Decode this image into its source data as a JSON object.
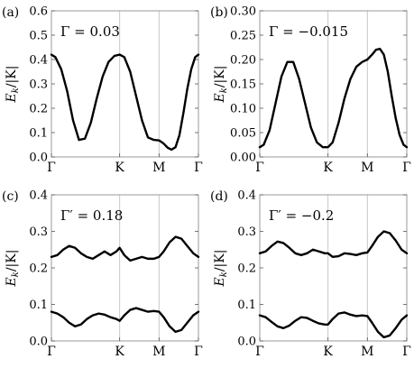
{
  "chart_data": [
    {
      "type": "line",
      "panel_label": "(a)",
      "annotation": "Γ = 0.03",
      "ylabel": "E_k/|K|",
      "ylabel_main": "E",
      "ylabel_sub": "k",
      "ylabel_rest": "/|K|",
      "ylim": [
        0,
        0.6
      ],
      "yticks": [
        "0.0",
        "0.1",
        "0.2",
        "0.3",
        "0.4",
        "0.5",
        "0.6"
      ],
      "xlim": [
        0,
        3.732
      ],
      "xticks": [
        {
          "label": "Γ",
          "x": 0
        },
        {
          "label": "K",
          "x": 1.732
        },
        {
          "label": "M",
          "x": 2.732
        },
        {
          "label": "Γ",
          "x": 3.732
        }
      ],
      "grid": false,
      "series": [
        {
          "x": [
            0,
            0.1,
            0.25,
            0.4,
            0.55,
            0.7,
            0.85,
            1.0,
            1.15,
            1.3,
            1.45,
            1.6,
            1.732,
            1.85,
            2.0,
            2.15,
            2.3,
            2.45,
            2.6,
            2.732,
            2.85,
            2.95,
            3.05,
            3.15,
            3.25,
            3.35,
            3.45,
            3.55,
            3.65,
            3.732
          ],
          "y": [
            0.42,
            0.41,
            0.36,
            0.27,
            0.15,
            0.07,
            0.075,
            0.14,
            0.24,
            0.33,
            0.39,
            0.415,
            0.42,
            0.41,
            0.35,
            0.25,
            0.15,
            0.08,
            0.07,
            0.068,
            0.055,
            0.038,
            0.03,
            0.04,
            0.09,
            0.18,
            0.28,
            0.36,
            0.41,
            0.42
          ]
        }
      ]
    },
    {
      "type": "line",
      "panel_label": "(b)",
      "annotation": "Γ = −0.015",
      "ylabel": "E_k/|K|",
      "ylabel_main": "E",
      "ylabel_sub": "k",
      "ylabel_rest": "/|K|",
      "ylim": [
        0,
        0.3
      ],
      "yticks": [
        "0.00",
        "0.05",
        "0.10",
        "0.15",
        "0.20",
        "0.25",
        "0.30"
      ],
      "xlim": [
        0,
        3.732
      ],
      "xticks": [
        {
          "label": "Γ",
          "x": 0
        },
        {
          "label": "K",
          "x": 1.732
        },
        {
          "label": "M",
          "x": 2.732
        },
        {
          "label": "Γ",
          "x": 3.732
        }
      ],
      "grid": false,
      "series": [
        {
          "x": [
            0,
            0.1,
            0.25,
            0.4,
            0.55,
            0.7,
            0.85,
            1.0,
            1.15,
            1.3,
            1.45,
            1.6,
            1.732,
            1.85,
            2.0,
            2.15,
            2.3,
            2.45,
            2.6,
            2.732,
            2.85,
            2.95,
            3.05,
            3.15,
            3.25,
            3.35,
            3.45,
            3.55,
            3.65,
            3.732
          ],
          "y": [
            0.02,
            0.025,
            0.055,
            0.11,
            0.165,
            0.195,
            0.195,
            0.16,
            0.11,
            0.06,
            0.03,
            0.02,
            0.02,
            0.03,
            0.07,
            0.12,
            0.16,
            0.185,
            0.195,
            0.2,
            0.21,
            0.22,
            0.222,
            0.21,
            0.175,
            0.125,
            0.08,
            0.045,
            0.025,
            0.02
          ]
        }
      ]
    },
    {
      "type": "line",
      "panel_label": "(c)",
      "annotation": "Γ′ = 0.18",
      "ylabel": "E_k/|K|",
      "ylabel_main": "E",
      "ylabel_sub": "k",
      "ylabel_rest": "/|K|",
      "ylim": [
        0,
        0.4
      ],
      "yticks": [
        "0.0",
        "0.1",
        "0.2",
        "0.3",
        "0.4"
      ],
      "xlim": [
        0,
        3.732
      ],
      "xticks": [
        {
          "label": "Γ",
          "x": 0
        },
        {
          "label": "K",
          "x": 1.732
        },
        {
          "label": "M",
          "x": 2.732
        },
        {
          "label": "Γ",
          "x": 3.732
        }
      ],
      "grid": false,
      "series": [
        {
          "x": [
            0,
            0.15,
            0.3,
            0.45,
            0.6,
            0.75,
            0.9,
            1.05,
            1.2,
            1.35,
            1.5,
            1.65,
            1.732,
            1.85,
            2.0,
            2.15,
            2.3,
            2.45,
            2.6,
            2.732,
            2.85,
            3.0,
            3.15,
            3.3,
            3.45,
            3.6,
            3.732
          ],
          "y": [
            0.23,
            0.235,
            0.25,
            0.26,
            0.255,
            0.24,
            0.23,
            0.225,
            0.235,
            0.245,
            0.235,
            0.245,
            0.255,
            0.235,
            0.22,
            0.225,
            0.23,
            0.225,
            0.225,
            0.23,
            0.245,
            0.27,
            0.285,
            0.28,
            0.26,
            0.24,
            0.23
          ]
        },
        {
          "x": [
            0,
            0.15,
            0.3,
            0.45,
            0.6,
            0.75,
            0.9,
            1.05,
            1.2,
            1.35,
            1.5,
            1.65,
            1.732,
            1.85,
            2.0,
            2.15,
            2.3,
            2.45,
            2.6,
            2.732,
            2.85,
            3.0,
            3.15,
            3.3,
            3.45,
            3.6,
            3.732
          ],
          "y": [
            0.08,
            0.075,
            0.065,
            0.05,
            0.04,
            0.045,
            0.06,
            0.07,
            0.075,
            0.072,
            0.065,
            0.06,
            0.055,
            0.07,
            0.085,
            0.09,
            0.085,
            0.08,
            0.082,
            0.08,
            0.065,
            0.04,
            0.025,
            0.03,
            0.05,
            0.07,
            0.08
          ]
        }
      ]
    },
    {
      "type": "line",
      "panel_label": "(d)",
      "annotation": "Γ′ = −0.2",
      "ylabel": "E_k/|K|",
      "ylabel_main": "E",
      "ylabel_sub": "k",
      "ylabel_rest": "/|K|",
      "ylim": [
        0,
        0.4
      ],
      "yticks": [
        "0.0",
        "0.1",
        "0.2",
        "0.3",
        "0.4"
      ],
      "xlim": [
        0,
        3.732
      ],
      "xticks": [
        {
          "label": "Γ",
          "x": 0
        },
        {
          "label": "K",
          "x": 1.732
        },
        {
          "label": "M",
          "x": 2.732
        },
        {
          "label": "Γ",
          "x": 3.732
        }
      ],
      "grid": false,
      "series": [
        {
          "x": [
            0,
            0.15,
            0.3,
            0.45,
            0.6,
            0.75,
            0.9,
            1.05,
            1.2,
            1.35,
            1.5,
            1.65,
            1.732,
            1.85,
            2.0,
            2.15,
            2.3,
            2.45,
            2.6,
            2.732,
            2.85,
            3.0,
            3.15,
            3.3,
            3.45,
            3.6,
            3.732
          ],
          "y": [
            0.24,
            0.245,
            0.26,
            0.272,
            0.268,
            0.255,
            0.24,
            0.235,
            0.24,
            0.25,
            0.245,
            0.24,
            0.24,
            0.23,
            0.232,
            0.24,
            0.238,
            0.235,
            0.24,
            0.242,
            0.26,
            0.285,
            0.3,
            0.295,
            0.275,
            0.25,
            0.24
          ]
        },
        {
          "x": [
            0,
            0.15,
            0.3,
            0.45,
            0.6,
            0.75,
            0.9,
            1.05,
            1.2,
            1.35,
            1.5,
            1.65,
            1.732,
            1.85,
            2.0,
            2.15,
            2.3,
            2.45,
            2.6,
            2.732,
            2.85,
            3.0,
            3.15,
            3.3,
            3.45,
            3.6,
            3.732
          ],
          "y": [
            0.07,
            0.065,
            0.052,
            0.04,
            0.035,
            0.042,
            0.055,
            0.065,
            0.063,
            0.055,
            0.048,
            0.045,
            0.045,
            0.06,
            0.075,
            0.078,
            0.072,
            0.068,
            0.07,
            0.068,
            0.05,
            0.025,
            0.01,
            0.015,
            0.035,
            0.058,
            0.07
          ]
        }
      ]
    }
  ]
}
